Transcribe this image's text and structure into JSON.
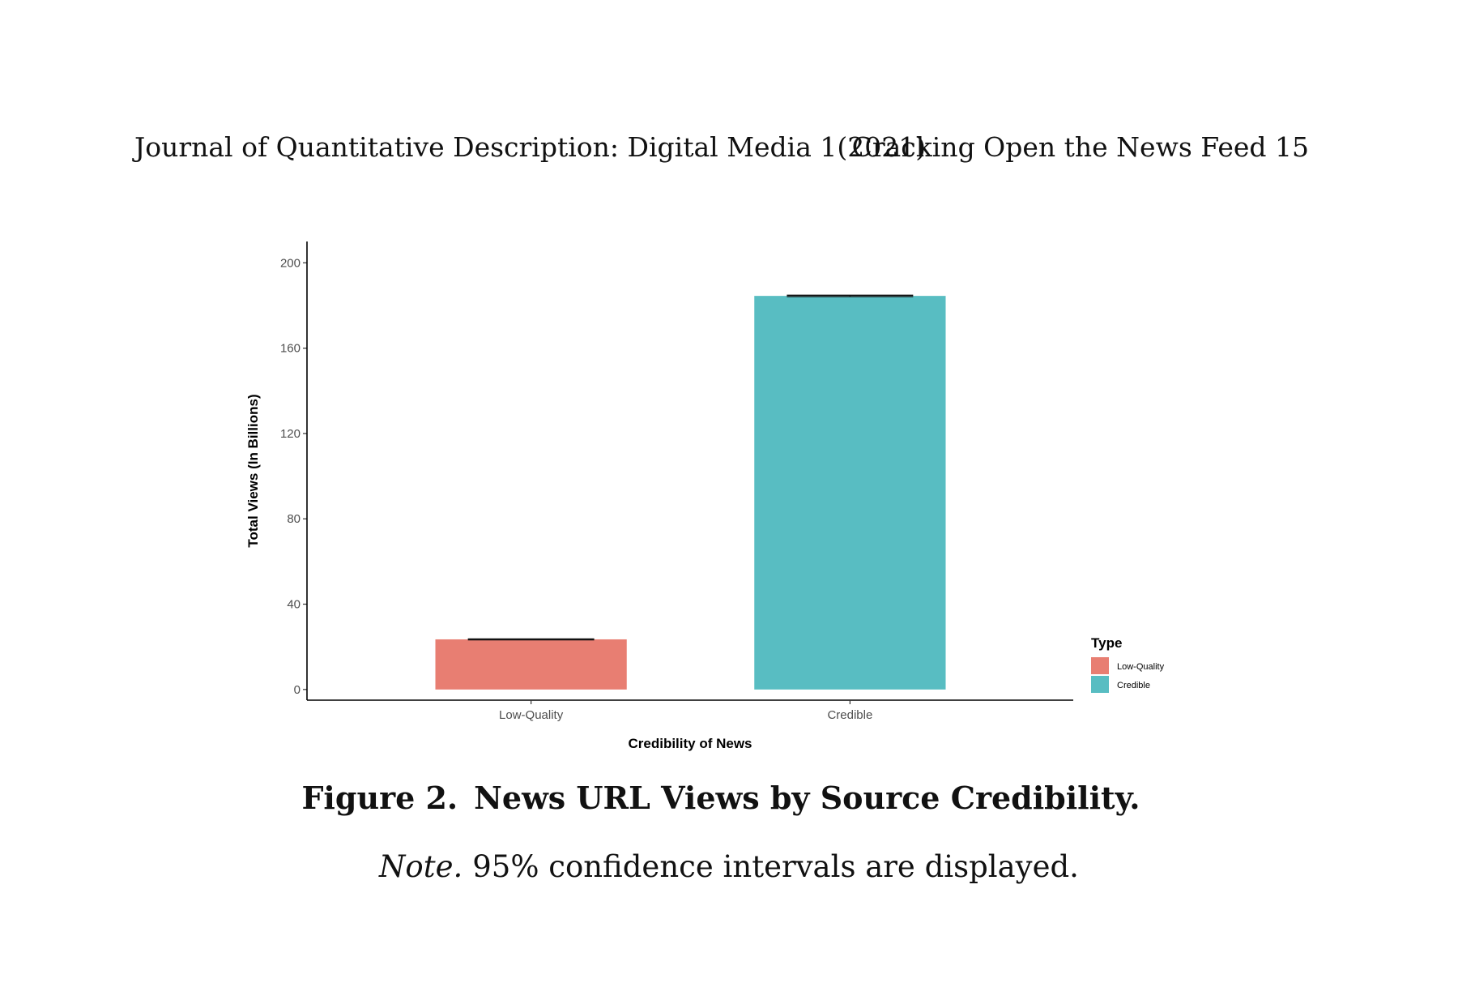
{
  "header": {
    "left": "Journal of Quantitative Description: Digital Media 1(2021)",
    "right": "Cracking Open the News Feed 15"
  },
  "caption": {
    "label": "Figure 2.",
    "title": "News URL Views by Source Credibility."
  },
  "note": {
    "label": "Note.",
    "text": "95% confidence intervals are displayed."
  },
  "chart_data": {
    "type": "bar",
    "categories": [
      "Low-Quality",
      "Credible"
    ],
    "values": [
      23.5,
      184.5
    ],
    "ci": [
      [
        23.3,
        23.7
      ],
      [
        184.2,
        184.8
      ]
    ],
    "xlabel": "Credibility of News",
    "ylabel": "Total Views (In Billions)",
    "ylim": [
      -5,
      210
    ],
    "yticks": [
      0,
      40,
      80,
      120,
      160,
      200
    ],
    "colors": [
      "#E87E72",
      "#58BDC2"
    ],
    "legend": {
      "title": "Type",
      "entries": [
        "Low-Quality",
        "Credible"
      ],
      "position": "right-bottom"
    },
    "grid": false
  }
}
